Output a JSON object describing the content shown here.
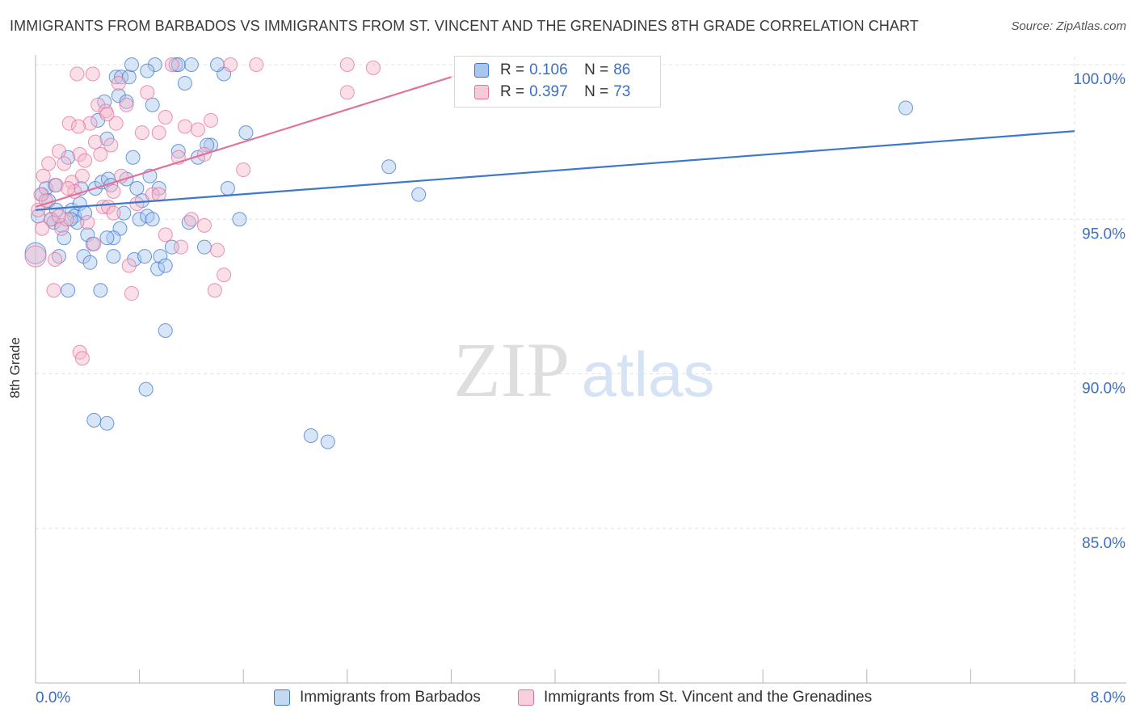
{
  "title": "IMMIGRANTS FROM BARBADOS VS IMMIGRANTS FROM ST. VINCENT AND THE GRENADINES 8TH GRADE CORRELATION CHART",
  "source": "Source: ZipAtlas.com",
  "watermark": {
    "zip": "ZIP",
    "atlas": "atlas"
  },
  "colors": {
    "blue": "#3d78cc",
    "blue_fill": "#a9c6ee",
    "pink": "#e3729a",
    "pink_fill": "#f4b8cb",
    "grid": "#e3e3e3",
    "axis_label": "#3b6fc4"
  },
  "legend": {
    "r_label": "R =",
    "n_label": "N =",
    "series": [
      {
        "r": "0.106",
        "n": "86"
      },
      {
        "r": "0.397",
        "n": "73"
      }
    ]
  },
  "chart_data": {
    "type": "scatter",
    "title": "IMMIGRANTS FROM BARBADOS VS IMMIGRANTS FROM ST. VINCENT AND THE GRENADINES 8TH GRADE CORRELATION CHART",
    "xlabel": "",
    "ylabel": "8th Grade",
    "xlim": [
      0.0,
      8.0
    ],
    "ylim": [
      80.0,
      100.0
    ],
    "x_tick_labels": [
      "0.0%",
      "8.0%"
    ],
    "y_ticks": [
      100.0,
      95.0,
      90.0,
      85.0
    ],
    "y_tick_labels": [
      "100.0%",
      "95.0%",
      "90.0%",
      "85.0%"
    ],
    "legend_position": "top-center",
    "grid": true,
    "series": [
      {
        "name": "Immigrants from Barbados",
        "color": "#3d78cc",
        "r": 0.106,
        "n": 86,
        "trend": {
          "x": [
            0.0,
            8.0
          ],
          "y": [
            95.3,
            97.85
          ]
        },
        "points": [
          [
            0.0,
            93.9
          ],
          [
            0.02,
            95.1
          ],
          [
            0.05,
            95.8
          ],
          [
            0.08,
            96.0
          ],
          [
            0.1,
            95.6
          ],
          [
            0.12,
            95.0
          ],
          [
            0.14,
            94.9
          ],
          [
            0.15,
            96.1
          ],
          [
            0.18,
            93.8
          ],
          [
            0.2,
            94.8
          ],
          [
            0.22,
            94.4
          ],
          [
            0.25,
            92.7
          ],
          [
            0.25,
            97.0
          ],
          [
            0.28,
            95.3
          ],
          [
            0.3,
            95.1
          ],
          [
            0.32,
            94.9
          ],
          [
            0.34,
            95.5
          ],
          [
            0.35,
            96.0
          ],
          [
            0.37,
            93.8
          ],
          [
            0.4,
            94.5
          ],
          [
            0.42,
            93.6
          ],
          [
            0.44,
            94.2
          ],
          [
            0.46,
            96.0
          ],
          [
            0.48,
            98.2
          ],
          [
            0.5,
            92.7
          ],
          [
            0.51,
            96.2
          ],
          [
            0.53,
            98.8
          ],
          [
            0.55,
            97.6
          ],
          [
            0.56,
            96.3
          ],
          [
            0.58,
            96.1
          ],
          [
            0.6,
            93.8
          ],
          [
            0.62,
            99.6
          ],
          [
            0.64,
            99.0
          ],
          [
            0.66,
            99.6
          ],
          [
            0.68,
            95.2
          ],
          [
            0.7,
            98.8
          ],
          [
            0.72,
            99.6
          ],
          [
            0.74,
            100.0
          ],
          [
            0.76,
            93.7
          ],
          [
            0.78,
            96.0
          ],
          [
            0.8,
            95.0
          ],
          [
            0.82,
            95.6
          ],
          [
            0.84,
            93.8
          ],
          [
            0.86,
            95.1
          ],
          [
            0.88,
            96.4
          ],
          [
            0.9,
            95.0
          ],
          [
            0.92,
            100.0
          ],
          [
            0.94,
            93.4
          ],
          [
            0.96,
            93.8
          ],
          [
            1.0,
            93.5
          ],
          [
            1.05,
            94.1
          ],
          [
            1.08,
            100.0
          ],
          [
            1.1,
            97.2
          ],
          [
            1.15,
            99.4
          ],
          [
            1.2,
            100.0
          ],
          [
            1.25,
            97.0
          ],
          [
            1.3,
            94.1
          ],
          [
            1.35,
            97.4
          ],
          [
            1.48,
            96.0
          ],
          [
            1.57,
            95.0
          ],
          [
            1.62,
            97.8
          ],
          [
            2.12,
            88.0
          ],
          [
            2.25,
            87.8
          ],
          [
            2.72,
            96.7
          ],
          [
            2.95,
            95.8
          ],
          [
            6.7,
            98.6
          ],
          [
            1.1,
            100.0
          ],
          [
            0.86,
            99.8
          ],
          [
            0.55,
            88.4
          ],
          [
            0.45,
            88.5
          ],
          [
            0.9,
            98.7
          ],
          [
            0.75,
            97.0
          ],
          [
            0.65,
            94.7
          ],
          [
            0.6,
            94.4
          ],
          [
            1.32,
            97.4
          ],
          [
            1.45,
            99.7
          ],
          [
            1.4,
            100.0
          ],
          [
            0.85,
            89.5
          ],
          [
            1.0,
            91.4
          ],
          [
            0.95,
            96.0
          ],
          [
            0.55,
            94.4
          ],
          [
            0.38,
            95.2
          ],
          [
            0.27,
            95.0
          ],
          [
            0.16,
            95.3
          ],
          [
            1.18,
            94.9
          ],
          [
            0.7,
            96.3
          ]
        ]
      },
      {
        "name": "Immigrants from St. Vincent and the Grenadines",
        "color": "#e3729a",
        "r": 0.397,
        "n": 73,
        "trend": {
          "x": [
            0.0,
            3.2
          ],
          "y": [
            95.4,
            99.6
          ]
        },
        "points": [
          [
            0.0,
            93.8
          ],
          [
            0.02,
            95.3
          ],
          [
            0.04,
            95.8
          ],
          [
            0.06,
            96.4
          ],
          [
            0.08,
            95.6
          ],
          [
            0.1,
            96.8
          ],
          [
            0.12,
            95.0
          ],
          [
            0.14,
            92.7
          ],
          [
            0.16,
            96.1
          ],
          [
            0.18,
            97.2
          ],
          [
            0.2,
            94.7
          ],
          [
            0.22,
            96.8
          ],
          [
            0.24,
            95.0
          ],
          [
            0.26,
            98.1
          ],
          [
            0.28,
            96.2
          ],
          [
            0.3,
            95.9
          ],
          [
            0.32,
            99.7
          ],
          [
            0.34,
            97.1
          ],
          [
            0.36,
            96.4
          ],
          [
            0.38,
            96.9
          ],
          [
            0.4,
            94.9
          ],
          [
            0.42,
            98.1
          ],
          [
            0.44,
            99.7
          ],
          [
            0.46,
            97.5
          ],
          [
            0.48,
            98.7
          ],
          [
            0.5,
            97.1
          ],
          [
            0.52,
            95.4
          ],
          [
            0.54,
            98.5
          ],
          [
            0.56,
            95.4
          ],
          [
            0.58,
            97.4
          ],
          [
            0.6,
            95.9
          ],
          [
            0.62,
            98.1
          ],
          [
            0.64,
            99.4
          ],
          [
            0.66,
            96.4
          ],
          [
            0.7,
            98.7
          ],
          [
            0.74,
            92.6
          ],
          [
            0.78,
            95.5
          ],
          [
            0.82,
            97.8
          ],
          [
            0.86,
            99.1
          ],
          [
            0.9,
            95.8
          ],
          [
            0.95,
            97.8
          ],
          [
            1.0,
            98.3
          ],
          [
            1.05,
            100.0
          ],
          [
            1.1,
            97.0
          ],
          [
            1.15,
            98.0
          ],
          [
            1.2,
            95.0
          ],
          [
            1.25,
            97.9
          ],
          [
            1.3,
            97.1
          ],
          [
            1.35,
            98.2
          ],
          [
            1.4,
            94.0
          ],
          [
            1.45,
            93.2
          ],
          [
            1.5,
            100.0
          ],
          [
            1.6,
            96.6
          ],
          [
            1.7,
            100.0
          ],
          [
            2.4,
            99.1
          ],
          [
            2.4,
            100.0
          ],
          [
            2.6,
            99.9
          ],
          [
            0.34,
            90.7
          ],
          [
            0.36,
            90.5
          ],
          [
            1.38,
            92.7
          ],
          [
            0.15,
            93.7
          ],
          [
            0.05,
            94.7
          ],
          [
            0.6,
            95.2
          ],
          [
            0.25,
            96.0
          ],
          [
            0.45,
            94.2
          ],
          [
            1.0,
            94.5
          ],
          [
            1.3,
            94.8
          ],
          [
            0.95,
            95.8
          ],
          [
            0.72,
            93.5
          ],
          [
            0.55,
            98.4
          ],
          [
            0.33,
            98.0
          ],
          [
            0.18,
            95.1
          ],
          [
            1.12,
            94.1
          ]
        ]
      }
    ]
  },
  "bottom_legend": {
    "series1": "Immigrants from Barbados",
    "series2": "Immigrants from St. Vincent and the Grenadines"
  }
}
